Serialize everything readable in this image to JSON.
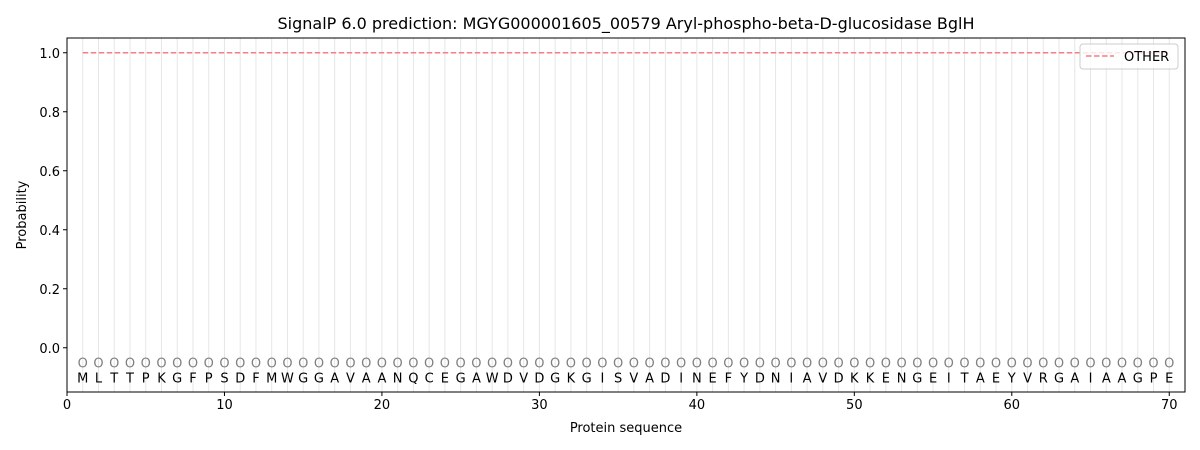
{
  "chart_data": {
    "type": "line",
    "title": "SignalP 6.0 prediction: MGYG000001605_00579 Aryl-phospho-beta-D-glucosidase BglH",
    "xlabel": "Protein sequence",
    "ylabel": "Probability",
    "xlim": [
      0,
      71
    ],
    "ylim": [
      -0.15,
      1.05
    ],
    "xticks": [
      0,
      10,
      20,
      30,
      40,
      50,
      60,
      70
    ],
    "yticks": [
      0.0,
      0.2,
      0.4,
      0.6,
      0.8,
      1.0
    ],
    "ytick_labels": [
      "0.0",
      "0.2",
      "0.4",
      "0.6",
      "0.8",
      "1.0"
    ],
    "grid": "vertical lines at each residue",
    "legend_placement": "top-right",
    "sequence": [
      "M",
      "L",
      "T",
      "T",
      "P",
      "K",
      "G",
      "F",
      "P",
      "S",
      "D",
      "F",
      "M",
      "W",
      "G",
      "G",
      "A",
      "V",
      "A",
      "A",
      "N",
      "Q",
      "C",
      "E",
      "G",
      "A",
      "W",
      "D",
      "V",
      "D",
      "G",
      "K",
      "G",
      "I",
      "S",
      "V",
      "A",
      "D",
      "I",
      "N",
      "E",
      "F",
      "Y",
      "D",
      "N",
      "I",
      "A",
      "V",
      "D",
      "K",
      "K",
      "E",
      "N",
      "G",
      "E",
      "I",
      "T",
      "A",
      "E",
      "Y",
      "V",
      "R",
      "G",
      "A",
      "I",
      "A",
      "A",
      "G",
      "P",
      "E"
    ],
    "region_label": "O",
    "series": [
      {
        "name": "OTHER",
        "color": "#f08080",
        "style": "dashed",
        "x_start": 1,
        "x_end": 70,
        "value": 1.0
      }
    ]
  }
}
